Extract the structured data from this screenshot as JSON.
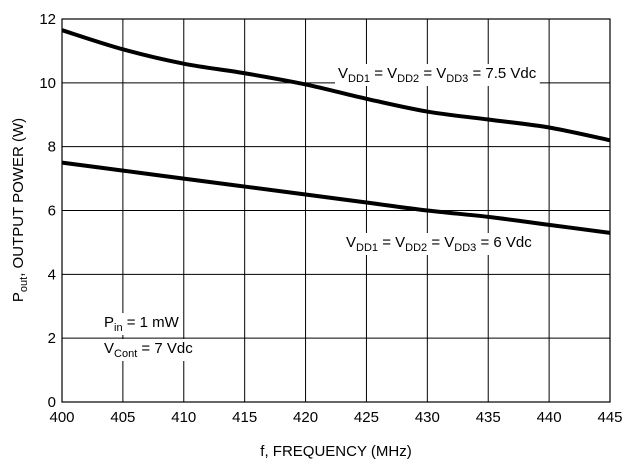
{
  "chart_data": {
    "type": "line",
    "title": "",
    "xlabel": "f, FREQUENCY (MHz)",
    "ylabel": {
      "main": "P",
      "sub": "out",
      "rest": ", OUTPUT POWER (W)"
    },
    "xlim": [
      400,
      445
    ],
    "ylim": [
      0,
      12
    ],
    "xticks": [
      400,
      405,
      410,
      415,
      420,
      425,
      430,
      435,
      440,
      445
    ],
    "yticks": [
      0,
      2,
      4,
      6,
      8,
      10,
      12
    ],
    "grid": true,
    "series": [
      {
        "x": [
          400,
          405,
          410,
          415,
          420,
          425,
          430,
          435,
          440,
          445
        ],
        "y": [
          11.65,
          11.05,
          10.6,
          10.3,
          9.95,
          9.5,
          9.1,
          8.85,
          8.6,
          8.2
        ]
      },
      {
        "x": [
          400,
          405,
          410,
          415,
          420,
          425,
          430,
          435,
          440,
          445
        ],
        "y": [
          7.5,
          7.25,
          7.0,
          6.75,
          6.5,
          6.25,
          6.0,
          5.8,
          5.55,
          5.3
        ]
      }
    ],
    "annotations": {
      "upper": {
        "pre": "V",
        "s1": "DD1",
        "t1": " = V",
        "s2": "DD2",
        "t2": " = V",
        "s3": "DD3",
        "t3": " = 7.5 Vdc"
      },
      "lower": {
        "pre": "V",
        "s1": "DD1",
        "t1": " = V",
        "s2": "DD2",
        "t2": " = V",
        "s3": "DD3",
        "t3": " = 6 Vdc"
      },
      "pin": {
        "pre": "P",
        "sub": "in",
        "post": " = 1 mW"
      },
      "vcont": {
        "pre": "V",
        "sub": "Cont",
        "post": " = 7 Vdc"
      }
    }
  }
}
